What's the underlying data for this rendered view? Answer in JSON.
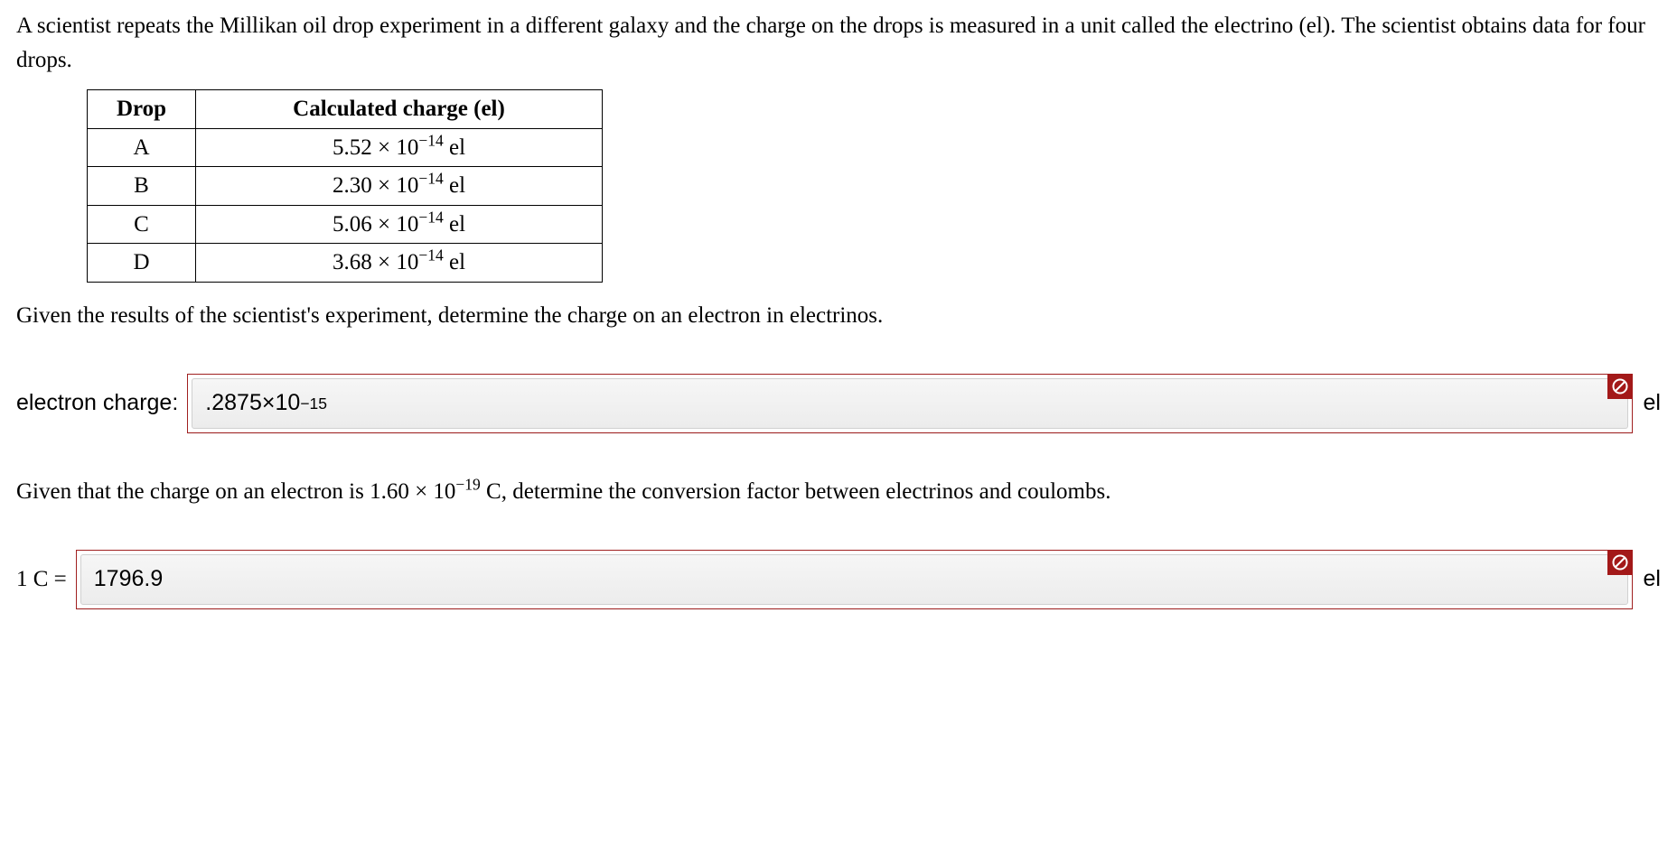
{
  "problem": {
    "intro": "A scientist repeats the Millikan oil drop experiment in a different galaxy and the charge on the drops is measured in a unit called the electrino (el). The scientist obtains data for four drops.",
    "table": {
      "headers": {
        "drop": "Drop",
        "charge": "Calculated charge (el)"
      },
      "rows": [
        {
          "drop": "A",
          "charge_html": "5.52 × 10<sup>−14</sup> el"
        },
        {
          "drop": "B",
          "charge_html": "2.30 × 10<sup>−14</sup> el"
        },
        {
          "drop": "C",
          "charge_html": "5.06 × 10<sup>−14</sup> el"
        },
        {
          "drop": "D",
          "charge_html": "3.68 × 10<sup>−14</sup> el"
        }
      ]
    },
    "prompt1": "Given the results of the scientist's experiment, determine the charge on an electron in electrinos.",
    "answer1": {
      "label": "electron charge:",
      "value_html": ".2875×10<sup>−15</sup>",
      "unit": "el",
      "error": true
    },
    "prompt2_html": "Given that the charge on an electron is 1.60 × 10<sup>−19</sup> C, determine the conversion factor between electrinos and coulombs.",
    "answer2": {
      "label": "1 C =",
      "value_html": "1796.9",
      "unit": "el",
      "error": true
    }
  },
  "colors": {
    "error_badge": "#a31919",
    "input_border_error": "#a02020",
    "text": "#000000",
    "background": "#ffffff"
  }
}
